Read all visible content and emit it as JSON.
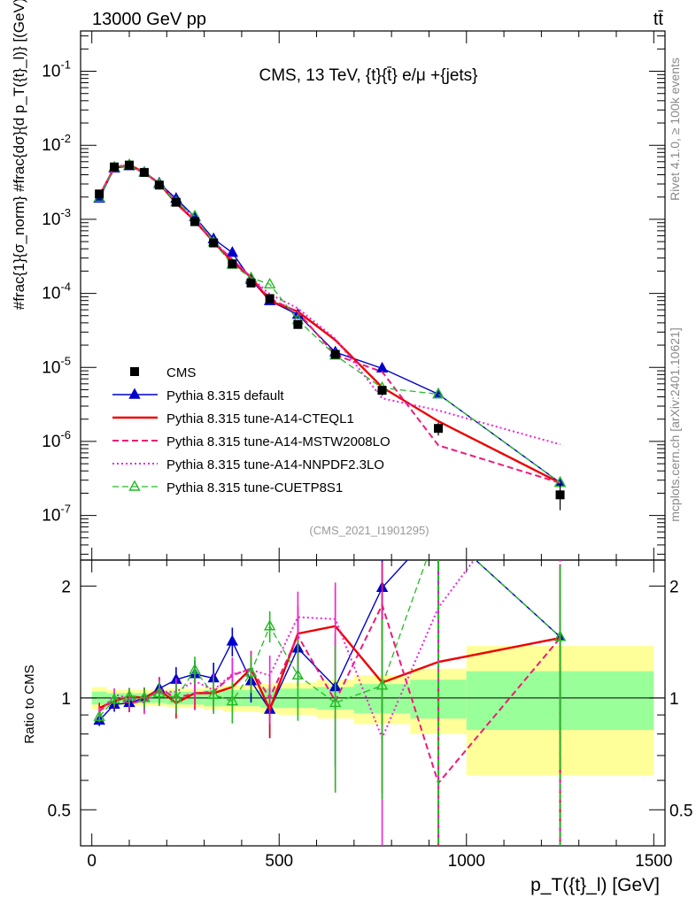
{
  "header": {
    "energy_label": "13000 GeV pp",
    "process_label": "tt̄"
  },
  "side": {
    "rivet_label": "Rivet 4.1.0, ≥ 100k events",
    "site_label": "mcplots.cern.ch [arXiv:2401.10621]"
  },
  "chart_data": {
    "type": "line",
    "title": "CMS, 13 TeV, {t}{t̄} e/μ +{jets}",
    "analysis_id": "(CMS_2021_I1901295)",
    "xlabel": "p_T({t}_l) [GeV]",
    "ylabel": "#frac{1}{σ_norm} #frac{dσ}{d p_T({t}_l)} [(GeV)^-1]",
    "ratio_ylabel": "Ratio to CMS",
    "xlim": [
      -30,
      1530
    ],
    "ylim": [
      2.5e-08,
      0.35
    ],
    "ratio_ylim": [
      0.4,
      2.35
    ],
    "x_ticks": [
      "0",
      "500",
      "1000",
      "1500"
    ],
    "y_ticks": [
      "10^-7",
      "10^-6",
      "10^-5",
      "10^-4",
      "10^-3",
      "10^-2",
      "10^-1"
    ],
    "ratio_ticks": [
      "0.5",
      "1",
      "2"
    ],
    "x": [
      20,
      60,
      100,
      140,
      180,
      225,
      275,
      325,
      375,
      425,
      475,
      550,
      650,
      775,
      925,
      1250
    ],
    "bins": [
      [
        0,
        40
      ],
      [
        40,
        80
      ],
      [
        80,
        120
      ],
      [
        120,
        160
      ],
      [
        160,
        200
      ],
      [
        200,
        250
      ],
      [
        250,
        300
      ],
      [
        300,
        350
      ],
      [
        350,
        400
      ],
      [
        400,
        450
      ],
      [
        450,
        500
      ],
      [
        500,
        600
      ],
      [
        600,
        700
      ],
      [
        700,
        850
      ],
      [
        850,
        1000
      ],
      [
        1000,
        1500
      ]
    ],
    "data": {
      "name": "CMS",
      "values": [
        0.0022,
        0.0051,
        0.0054,
        0.0043,
        0.0029,
        0.0017,
        0.00093,
        0.00048,
        0.00025,
        0.000138,
        8.5e-05,
        3.8e-05,
        1.5e-05,
        4.9e-06,
        1.5e-06,
        1.9e-07
      ],
      "band_inner": [
        0.04,
        0.03,
        0.03,
        0.03,
        0.03,
        0.04,
        0.04,
        0.05,
        0.05,
        0.05,
        0.06,
        0.06,
        0.07,
        0.09,
        0.12,
        0.18
      ],
      "band_outer": [
        0.07,
        0.05,
        0.05,
        0.05,
        0.05,
        0.06,
        0.06,
        0.07,
        0.08,
        0.08,
        0.09,
        0.1,
        0.12,
        0.15,
        0.2,
        0.38
      ]
    },
    "series": [
      {
        "name": "Pythia 8.315 default",
        "color": "#0000cc",
        "style": "solid",
        "width": 1.4,
        "marker": "triangle",
        "ratio": [
          0.87,
          0.96,
          0.97,
          1.0,
          1.06,
          1.12,
          1.16,
          1.13,
          1.42,
          1.11,
          0.93,
          1.36,
          1.07,
          1.98,
          2.9,
          1.46
        ]
      },
      {
        "name": "Pythia 8.315 tune-A14-CTEQL1",
        "color": "#ee0000",
        "style": "solid",
        "width": 2.4,
        "marker": "none",
        "ratio": [
          0.94,
          0.98,
          1.01,
          1.0,
          1.05,
          0.97,
          1.03,
          1.03,
          1.07,
          1.2,
          0.93,
          1.49,
          1.56,
          1.1,
          1.25,
          1.45
        ]
      },
      {
        "name": "Pythia 8.315 tune-A14-MSTW2008LO",
        "color": "#ee1a7a",
        "style": "dashed",
        "width": 2.0,
        "marker": "none",
        "ratio": [
          0.92,
          1.0,
          0.97,
          0.98,
          1.06,
          1.0,
          1.03,
          1.04,
          1.15,
          1.2,
          1.0,
          1.47,
          0.98,
          1.78,
          0.59,
          1.45
        ]
      },
      {
        "name": "Pythia 8.315 tune-A14-NNPDF2.3LO",
        "color": "#ee22dd",
        "style": "dotted",
        "width": 2.0,
        "marker": "none",
        "ratio": [
          0.91,
          1.02,
          1.0,
          0.97,
          1.04,
          1.04,
          1.11,
          1.05,
          1.16,
          1.19,
          1.15,
          1.65,
          1.63,
          0.78,
          1.75,
          4.8
        ]
      },
      {
        "name": "Pythia 8.315 tune-CUETP8S1",
        "color": "#22bb22",
        "style": "dashed",
        "width": 1.3,
        "marker": "open-triangle",
        "ratio": [
          0.89,
          0.99,
          1.01,
          1.0,
          1.03,
          1.0,
          1.19,
          1.02,
          0.98,
          1.17,
          1.56,
          1.15,
          0.97,
          1.08,
          2.9,
          1.46
        ]
      }
    ]
  }
}
